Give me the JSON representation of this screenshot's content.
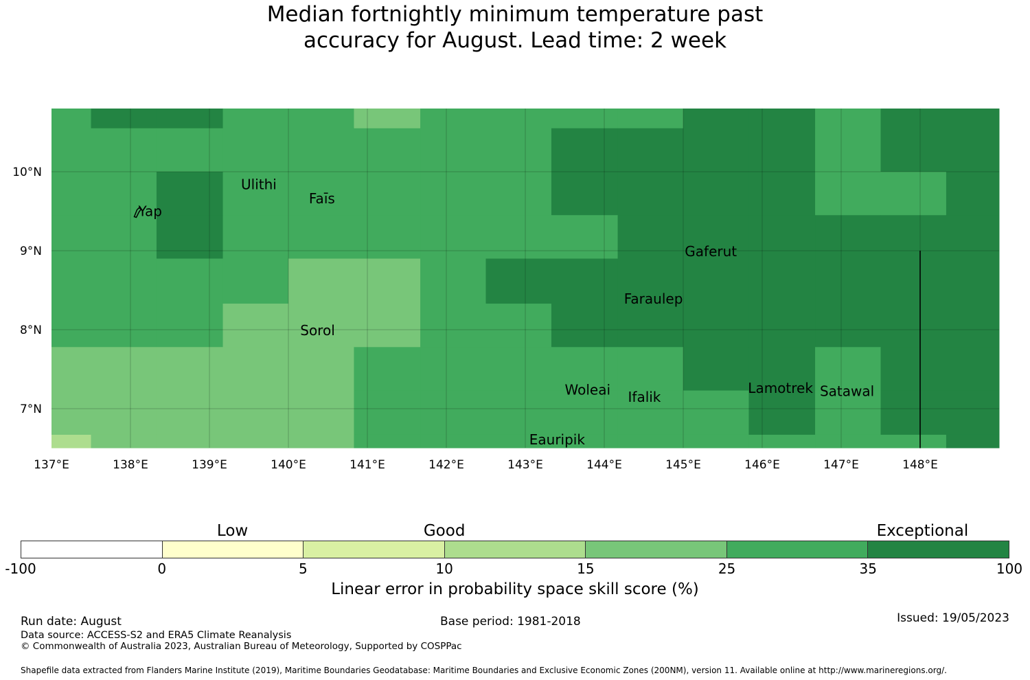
{
  "title": {
    "line1": "Median fortnightly minimum temperature past",
    "line2": "accuracy for August. Lead time: 2 week"
  },
  "map": {
    "lon_range": [
      137,
      149
    ],
    "lat_range": [
      6.5,
      10.8
    ],
    "lon_ticks": [
      {
        "value": 137,
        "label": "137°E"
      },
      {
        "value": 138,
        "label": "138°E"
      },
      {
        "value": 139,
        "label": "139°E"
      },
      {
        "value": 140,
        "label": "140°E"
      },
      {
        "value": 141,
        "label": "141°E"
      },
      {
        "value": 142,
        "label": "142°E"
      },
      {
        "value": 143,
        "label": "143°E"
      },
      {
        "value": 144,
        "label": "144°E"
      },
      {
        "value": 145,
        "label": "145°E"
      },
      {
        "value": 146,
        "label": "146°E"
      },
      {
        "value": 147,
        "label": "147°E"
      },
      {
        "value": 148,
        "label": "148°E"
      }
    ],
    "lat_ticks": [
      {
        "value": 10,
        "label": "10°N"
      },
      {
        "value": 9,
        "label": "9°N"
      },
      {
        "value": 8,
        "label": "8°N"
      },
      {
        "value": 7,
        "label": "7°N"
      }
    ],
    "grid_lines": true,
    "boundary_line": {
      "lon": 148,
      "lat_from": 6.5,
      "lat_to": 9.0
    },
    "places": [
      {
        "name": "Yap",
        "lon": 138.1,
        "lat": 9.5
      },
      {
        "name": "Ulithi",
        "lon": 139.4,
        "lat": 9.84
      },
      {
        "name": "Faīs",
        "lon": 140.26,
        "lat": 9.66
      },
      {
        "name": "Sorol",
        "lon": 140.15,
        "lat": 7.99
      },
      {
        "name": "Gaferut",
        "lon": 145.02,
        "lat": 8.99
      },
      {
        "name": "Faraulep",
        "lon": 144.25,
        "lat": 8.39
      },
      {
        "name": "Woleai",
        "lon": 143.5,
        "lat": 7.24
      },
      {
        "name": "Ifalik",
        "lon": 144.3,
        "lat": 7.15
      },
      {
        "name": "Lamotrek",
        "lon": 145.82,
        "lat": 7.26
      },
      {
        "name": "Satawal",
        "lon": 146.73,
        "lat": 7.22
      },
      {
        "name": "Eauripik",
        "lon": 143.05,
        "lat": 6.61
      }
    ]
  },
  "legend": {
    "categories": [
      {
        "label": "Low",
        "center": 2.5
      },
      {
        "label": "Good",
        "center": 10
      },
      {
        "label": "Exceptional",
        "center": 60
      }
    ],
    "tick_labels": [
      "-100",
      "0",
      "5",
      "10",
      "15",
      "25",
      "35",
      "100"
    ],
    "colors": [
      "#ffffff",
      "#ffffcc",
      "#d9f0a3",
      "#addd8e",
      "#78c679",
      "#41ab5d",
      "#238443"
    ],
    "title": "Linear error in probability space skill score (%)"
  },
  "chart_data": {
    "type": "heatmap",
    "title": "Median fortnightly minimum temperature past accuracy for August. Lead time: 2 week",
    "lon_edges": [
      137,
      137.5,
      138.33,
      139.17,
      140,
      140.83,
      141.67,
      142.5,
      143.33,
      144.17,
      145,
      145.83,
      146.67,
      147.5,
      148.33,
      149
    ],
    "lat_edges": [
      10.8,
      10.55,
      10.0,
      9.45,
      8.9,
      8.33,
      7.78,
      7.23,
      6.67,
      6.5
    ],
    "category_bins": [
      -100,
      0,
      5,
      10,
      15,
      25,
      35,
      100
    ],
    "cells": [
      [
        5,
        6,
        6,
        5,
        5,
        4,
        5,
        5,
        5,
        5,
        6,
        6,
        5,
        6,
        6
      ],
      [
        5,
        5,
        5,
        5,
        5,
        5,
        5,
        5,
        6,
        6,
        6,
        6,
        5,
        6,
        6
      ],
      [
        5,
        5,
        6,
        5,
        5,
        5,
        5,
        5,
        6,
        6,
        6,
        6,
        5,
        5,
        6
      ],
      [
        5,
        5,
        6,
        5,
        5,
        5,
        5,
        5,
        5,
        6,
        6,
        6,
        6,
        6,
        6
      ],
      [
        5,
        5,
        5,
        5,
        4,
        4,
        5,
        6,
        6,
        6,
        6,
        6,
        6,
        6,
        6
      ],
      [
        5,
        5,
        5,
        4,
        4,
        4,
        5,
        5,
        6,
        6,
        6,
        6,
        6,
        6,
        6
      ],
      [
        4,
        4,
        4,
        4,
        4,
        5,
        5,
        5,
        5,
        5,
        6,
        6,
        5,
        6,
        6
      ],
      [
        4,
        4,
        4,
        4,
        4,
        5,
        5,
        5,
        5,
        5,
        5,
        6,
        5,
        6,
        6
      ],
      [
        3,
        4,
        4,
        4,
        4,
        5,
        5,
        5,
        5,
        5,
        5,
        5,
        5,
        5,
        6
      ]
    ],
    "xlabel": "",
    "ylabel": "",
    "legend": "bottom colorbar"
  },
  "footer": {
    "run_date": "Run date: August",
    "base_period": "Base period: 1981-2018",
    "issued": "Issued: 19/05/2023",
    "data_source": "Data source: ACCESS-S2 and ERA5 Climate Reanalysis",
    "copyright": "© Commonwealth of Australia 2023, Australian Bureau of Meteorology, Supported by COSPPac",
    "shapefile": "Shapefile data extracted from Flanders Marine Institute (2019), Maritime Boundaries Geodatabase: Maritime Boundaries and Exclusive Economic Zones (200NM), version 11. Available online at http://www.marineregions.org/."
  }
}
